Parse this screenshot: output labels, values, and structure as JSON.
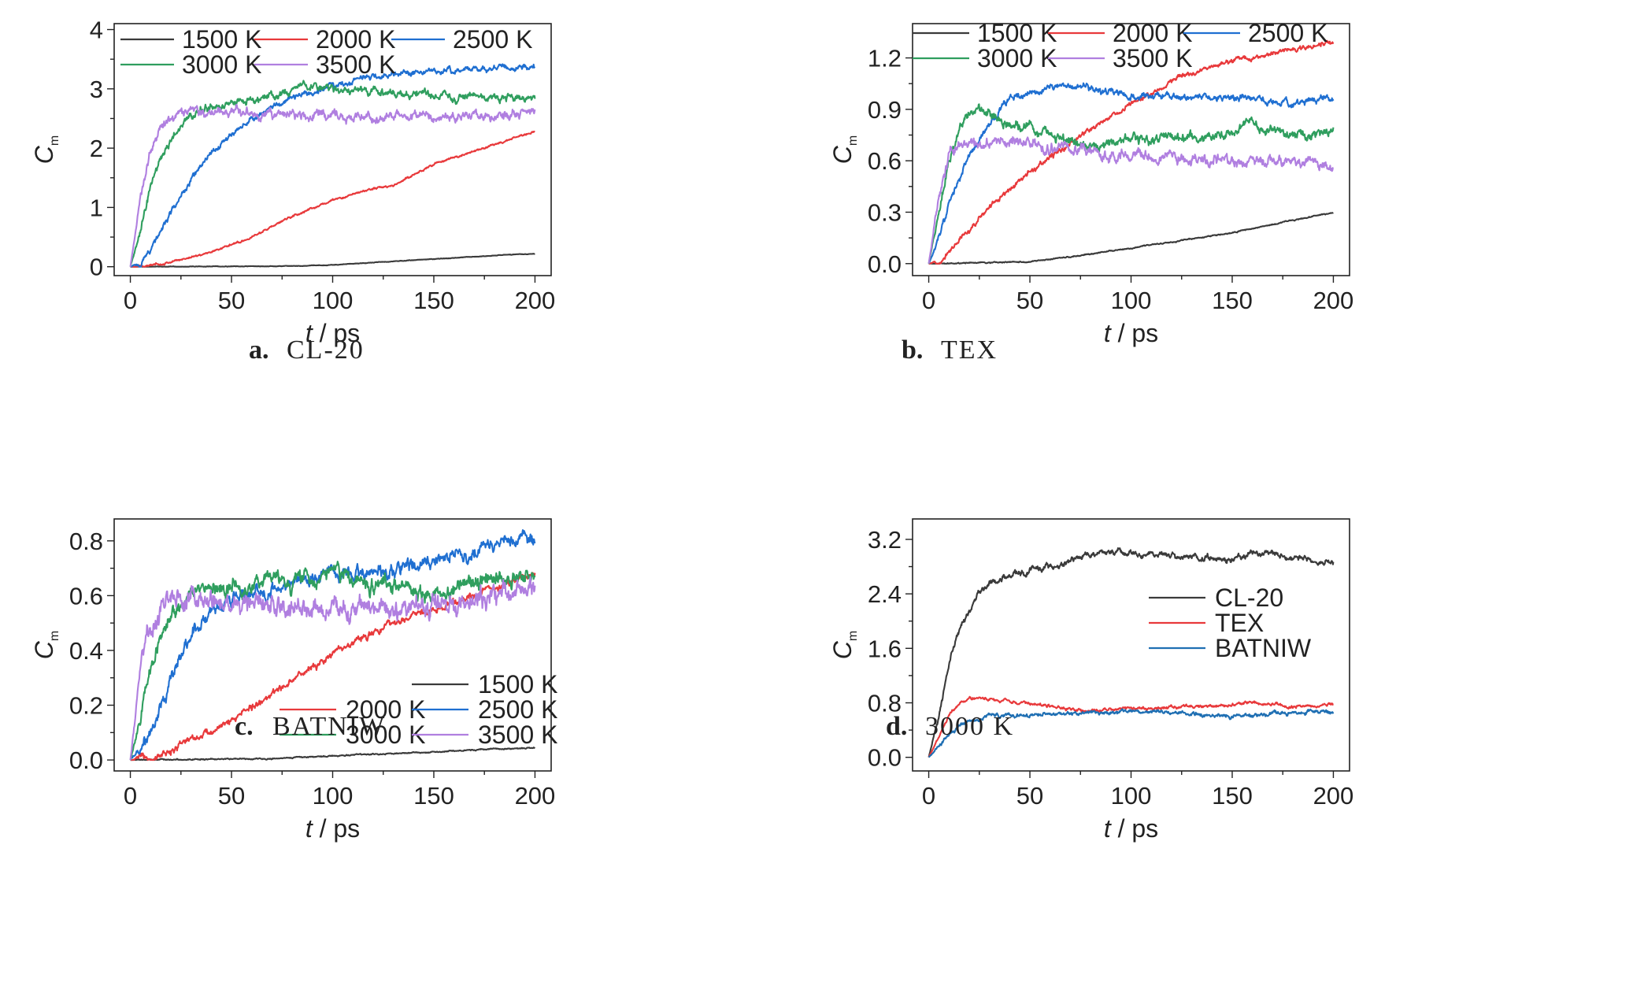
{
  "colors": {
    "1500 K": "#3a3a3a",
    "2000 K": "#e8393b",
    "2500 K": "#1f6fd1",
    "3000 K": "#2f9e5e",
    "3500 K": "#b07fe0",
    "CL-20": "#3a3a3a",
    "TEX": "#e8393b",
    "BATNIW": "#1f6fb3"
  },
  "chart_data": [
    {
      "panel": "a",
      "caption_letter": "a.",
      "caption_name": "CL-20",
      "type": "line",
      "xlabel_italic": "t",
      "xlabel_rest": " / ps",
      "ylabel_main": "C",
      "ylabel_sub": "m",
      "xlim": [
        -8,
        208
      ],
      "ylim": [
        -0.15,
        4.1
      ],
      "xticks": [
        0,
        50,
        100,
        150,
        200
      ],
      "xtick_labels": [
        "0",
        "50",
        "100",
        "150",
        "200"
      ],
      "yticks": [
        0,
        1,
        2,
        3,
        4
      ],
      "ytick_labels": [
        "0",
        "1",
        "2",
        "3",
        "4"
      ],
      "legend_rows": [
        [
          "1500 K",
          "2000 K",
          "2500 K"
        ],
        [
          "3000 K",
          "3500 K"
        ]
      ],
      "legend_position": "top",
      "series": [
        {
          "name": "1500 K",
          "noise": 0.004,
          "x": [
            0,
            80,
            100,
            120,
            150,
            180,
            200
          ],
          "y": [
            0,
            0.01,
            0.03,
            0.07,
            0.13,
            0.19,
            0.22
          ]
        },
        {
          "name": "2000 K",
          "noise": 0.015,
          "x": [
            0,
            10,
            20,
            40,
            60,
            80,
            100,
            120,
            130,
            140,
            150,
            170,
            200
          ],
          "y": [
            0,
            0.02,
            0.08,
            0.25,
            0.5,
            0.85,
            1.12,
            1.32,
            1.37,
            1.55,
            1.73,
            1.95,
            2.28
          ]
        },
        {
          "name": "2500 K",
          "noise": 0.045,
          "x": [
            0,
            5,
            10,
            20,
            30,
            40,
            50,
            60,
            70,
            80,
            90,
            100,
            120,
            150,
            200
          ],
          "y": [
            0,
            0.05,
            0.3,
            0.9,
            1.45,
            1.9,
            2.25,
            2.5,
            2.7,
            2.85,
            2.95,
            3.05,
            3.22,
            3.3,
            3.38
          ]
        },
        {
          "name": "3000 K",
          "noise": 0.06,
          "x": [
            0,
            5,
            10,
            15,
            20,
            25,
            30,
            40,
            60,
            85,
            100,
            120,
            150,
            200
          ],
          "y": [
            0,
            0.6,
            1.35,
            1.85,
            2.15,
            2.4,
            2.58,
            2.68,
            2.8,
            3.03,
            3.0,
            2.96,
            2.88,
            2.85
          ]
        },
        {
          "name": "3500 K",
          "noise": 0.07,
          "x": [
            0,
            5,
            10,
            15,
            20,
            25,
            30,
            60,
            100,
            150,
            200
          ],
          "y": [
            0,
            1.2,
            1.95,
            2.35,
            2.5,
            2.58,
            2.62,
            2.58,
            2.55,
            2.5,
            2.62
          ]
        }
      ]
    },
    {
      "panel": "b",
      "caption_letter": "b.",
      "caption_name": "TEX",
      "type": "line",
      "xlabel_italic": "t",
      "xlabel_rest": " / ps",
      "ylabel_main": "C",
      "ylabel_sub": "m",
      "xlim": [
        -8,
        208
      ],
      "ylim": [
        -0.07,
        1.4
      ],
      "xticks": [
        0,
        50,
        100,
        150,
        200
      ],
      "xtick_labels": [
        "0",
        "50",
        "100",
        "150",
        "200"
      ],
      "yticks": [
        0,
        0.3,
        0.6,
        0.9,
        1.2
      ],
      "ytick_labels": [
        "0.0",
        "0.3",
        "0.6",
        "0.9",
        "1.2"
      ],
      "legend_rows": [
        [
          "1500 K",
          "2000 K",
          "2500 K"
        ],
        [
          "3000 K",
          "3500 K"
        ]
      ],
      "legend_position": "top",
      "series": [
        {
          "name": "1500 K",
          "noise": 0.003,
          "x": [
            0,
            50,
            70,
            100,
            150,
            200
          ],
          "y": [
            0,
            0.01,
            0.04,
            0.09,
            0.18,
            0.3
          ]
        },
        {
          "name": "2000 K",
          "noise": 0.013,
          "x": [
            0,
            5,
            10,
            20,
            30,
            40,
            50,
            60,
            80,
            100,
            120,
            150,
            180,
            200
          ],
          "y": [
            0,
            0.01,
            0.08,
            0.2,
            0.33,
            0.43,
            0.53,
            0.62,
            0.78,
            0.93,
            1.07,
            1.18,
            1.25,
            1.29
          ]
        },
        {
          "name": "2500 K",
          "noise": 0.018,
          "x": [
            0,
            5,
            10,
            20,
            30,
            40,
            50,
            60,
            80,
            100,
            130,
            150,
            180,
            200
          ],
          "y": [
            0,
            0.15,
            0.35,
            0.62,
            0.82,
            0.96,
            1.0,
            1.02,
            1.03,
            0.98,
            0.97,
            0.97,
            0.94,
            0.97
          ]
        },
        {
          "name": "3000 K",
          "noise": 0.025,
          "x": [
            0,
            5,
            10,
            15,
            20,
            25,
            40,
            60,
            75,
            100,
            130,
            150,
            160,
            180,
            200
          ],
          "y": [
            0,
            0.3,
            0.6,
            0.78,
            0.87,
            0.88,
            0.82,
            0.76,
            0.68,
            0.72,
            0.74,
            0.76,
            0.8,
            0.74,
            0.77
          ]
        },
        {
          "name": "3500 K",
          "noise": 0.028,
          "x": [
            0,
            5,
            10,
            15,
            20,
            45,
            60,
            80,
            100,
            150,
            200
          ],
          "y": [
            0,
            0.4,
            0.66,
            0.7,
            0.69,
            0.72,
            0.66,
            0.65,
            0.63,
            0.61,
            0.58
          ]
        }
      ]
    },
    {
      "panel": "c",
      "caption_letter": "c.",
      "caption_name": "BATNIW",
      "type": "line",
      "xlabel_italic": "t",
      "xlabel_rest": " / ps",
      "ylabel_main": "C",
      "ylabel_sub": "m",
      "xlim": [
        -8,
        208
      ],
      "ylim": [
        -0.04,
        0.88
      ],
      "xticks": [
        0,
        50,
        100,
        150,
        200
      ],
      "xtick_labels": [
        "0",
        "50",
        "100",
        "150",
        "200"
      ],
      "yticks": [
        0,
        0.2,
        0.4,
        0.6,
        0.8
      ],
      "ytick_labels": [
        "0.0",
        "0.2",
        "0.4",
        "0.6",
        "0.8"
      ],
      "legend_rows": [
        [
          "1500 K"
        ],
        [
          "2000 K",
          "2500 K"
        ],
        [
          "3000 K",
          "3500 K"
        ]
      ],
      "legend_position": "bottom-right",
      "series": [
        {
          "name": "1500 K",
          "noise": 0.002,
          "x": [
            0,
            70,
            100,
            150,
            200
          ],
          "y": [
            0,
            0.005,
            0.015,
            0.03,
            0.045
          ]
        },
        {
          "name": "2000 K",
          "noise": 0.012,
          "x": [
            0,
            10,
            20,
            30,
            50,
            70,
            90,
            110,
            130,
            150,
            170,
            200
          ],
          "y": [
            0,
            0.01,
            0.03,
            0.07,
            0.14,
            0.24,
            0.34,
            0.43,
            0.5,
            0.55,
            0.6,
            0.68
          ]
        },
        {
          "name": "2500 K",
          "noise": 0.022,
          "x": [
            0,
            10,
            20,
            30,
            40,
            50,
            70,
            100,
            130,
            150,
            170,
            200
          ],
          "y": [
            0,
            0.1,
            0.3,
            0.46,
            0.55,
            0.6,
            0.63,
            0.68,
            0.7,
            0.72,
            0.77,
            0.8
          ]
        },
        {
          "name": "3000 K",
          "noise": 0.026,
          "x": [
            0,
            5,
            10,
            15,
            20,
            30,
            50,
            100,
            130,
            150,
            180,
            200
          ],
          "y": [
            0,
            0.15,
            0.32,
            0.45,
            0.53,
            0.62,
            0.63,
            0.67,
            0.64,
            0.6,
            0.66,
            0.66
          ]
        },
        {
          "name": "3500 K",
          "noise": 0.035,
          "x": [
            0,
            5,
            10,
            15,
            20,
            30,
            60,
            100,
            150,
            200
          ],
          "y": [
            0,
            0.32,
            0.5,
            0.56,
            0.58,
            0.58,
            0.56,
            0.55,
            0.56,
            0.63
          ]
        }
      ]
    },
    {
      "panel": "d",
      "caption_letter": "d.",
      "caption_name": "3000 K",
      "type": "line",
      "xlabel_italic": "t",
      "xlabel_rest": " / ps",
      "ylabel_main": "C",
      "ylabel_sub": "m",
      "xlim": [
        -8,
        208
      ],
      "ylim": [
        -0.2,
        3.5
      ],
      "xticks": [
        0,
        50,
        100,
        150,
        200
      ],
      "xtick_labels": [
        "0",
        "50",
        "100",
        "150",
        "200"
      ],
      "yticks": [
        0,
        0.8,
        1.6,
        2.4,
        3.2
      ],
      "ytick_labels": [
        "0.0",
        "0.8",
        "1.6",
        "2.4",
        "3.2"
      ],
      "legend_rows": [
        [
          "CL-20"
        ],
        [
          "TEX"
        ],
        [
          "BATNIW"
        ]
      ],
      "legend_position": "center-right",
      "series": [
        {
          "name": "CL-20",
          "noise": 0.04,
          "x": [
            0,
            5,
            10,
            15,
            20,
            25,
            30,
            40,
            60,
            85,
            100,
            120,
            150,
            160,
            200
          ],
          "y": [
            0,
            0.6,
            1.35,
            1.85,
            2.15,
            2.4,
            2.58,
            2.68,
            2.8,
            3.03,
            3.0,
            2.96,
            2.9,
            3.02,
            2.85
          ]
        },
        {
          "name": "TEX",
          "noise": 0.02,
          "x": [
            0,
            5,
            10,
            15,
            20,
            25,
            40,
            60,
            75,
            100,
            130,
            150,
            160,
            180,
            200
          ],
          "y": [
            0,
            0.3,
            0.6,
            0.78,
            0.87,
            0.88,
            0.82,
            0.76,
            0.68,
            0.72,
            0.74,
            0.76,
            0.8,
            0.74,
            0.77
          ]
        },
        {
          "name": "BATNIW",
          "noise": 0.025,
          "x": [
            0,
            5,
            10,
            15,
            20,
            30,
            50,
            100,
            130,
            150,
            180,
            200
          ],
          "y": [
            0,
            0.15,
            0.32,
            0.45,
            0.53,
            0.62,
            0.63,
            0.67,
            0.64,
            0.6,
            0.66,
            0.66
          ]
        }
      ]
    }
  ]
}
